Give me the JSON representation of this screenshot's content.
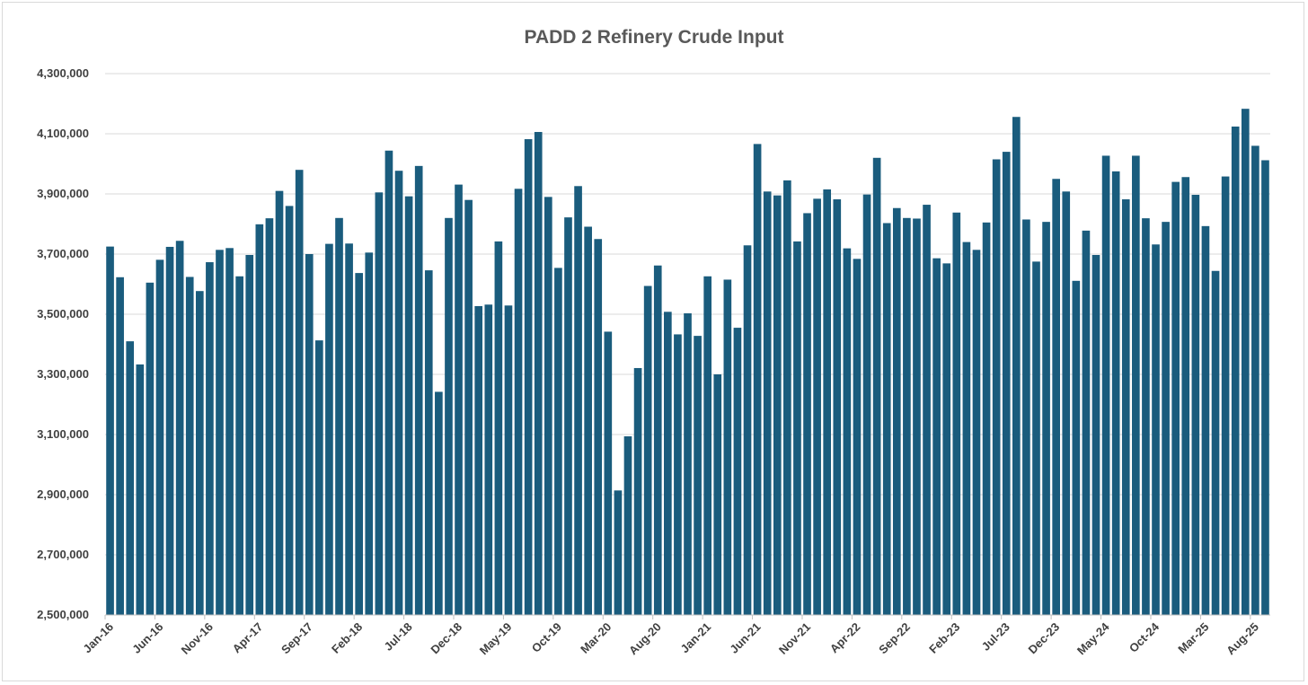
{
  "chart_data": {
    "type": "bar",
    "title": "PADD 2 Refinery Crude Input",
    "xlabel": "",
    "ylabel": "",
    "ylim": [
      2500000,
      4300000
    ],
    "yticks": [
      2500000,
      2700000,
      2900000,
      3100000,
      3300000,
      3500000,
      3700000,
      3900000,
      4100000,
      4300000
    ],
    "ytick_labels": [
      "2,500,000",
      "2,700,000",
      "2,900,000",
      "3,100,000",
      "3,300,000",
      "3,500,000",
      "3,700,000",
      "3,900,000",
      "4,100,000",
      "4,300,000"
    ],
    "grid": true,
    "legend": "none",
    "bar_color": "#1a5c7d",
    "x_tick_labels": [
      "Jan-16",
      "Jun-16",
      "Nov-16",
      "Apr-17",
      "Sep-17",
      "Feb-18",
      "Jul-18",
      "Dec-18",
      "May-19",
      "Oct-19",
      "Mar-20",
      "Aug-20",
      "Jan-21",
      "Jun-21",
      "Nov-21",
      "Apr-22",
      "Sep-22",
      "Feb-23",
      "Jul-23",
      "Dec-23",
      "May-24",
      "Oct-24",
      "Mar-25",
      "Aug-25"
    ],
    "x_tick_every": 5,
    "values": [
      3725000,
      3623000,
      3410000,
      3333000,
      3605000,
      3681000,
      3724000,
      3744000,
      3624000,
      3577000,
      3673000,
      3714000,
      3720000,
      3626000,
      3697000,
      3799000,
      3819000,
      3910000,
      3860000,
      3980000,
      3700000,
      3413000,
      3734000,
      3820000,
      3735000,
      3637000,
      3705000,
      3905000,
      4044000,
      3977000,
      3892000,
      3993000,
      3646000,
      3242000,
      3820000,
      3931000,
      3880000,
      3527000,
      3532000,
      3742000,
      3529000,
      3917000,
      4082000,
      4106000,
      3890000,
      3654000,
      3822000,
      3926000,
      3791000,
      3750000,
      3442000,
      2914000,
      3094000,
      3321000,
      3594000,
      3662000,
      3508000,
      3433000,
      3503000,
      3428000,
      3626000,
      3300000,
      3615000,
      3455000,
      3729000,
      4066000,
      3908000,
      3895000,
      3945000,
      3742000,
      3836000,
      3884000,
      3915000,
      3882000,
      3719000,
      3684000,
      3898000,
      4020000,
      3803000,
      3853000,
      3820000,
      3818000,
      3864000,
      3686000,
      3669000,
      3838000,
      3740000,
      3714000,
      3805000,
      4015000,
      4040000,
      4156000,
      3815000,
      3675000,
      3807000,
      3950000,
      3908000,
      3611000,
      3778000,
      3697000,
      4027000,
      3975000,
      3882000,
      4027000,
      3819000,
      3732000,
      3807000,
      3940000,
      3956000,
      3897000,
      3793000,
      3644000,
      3958000,
      4124000,
      4183000,
      4060000,
      4012000
    ]
  }
}
